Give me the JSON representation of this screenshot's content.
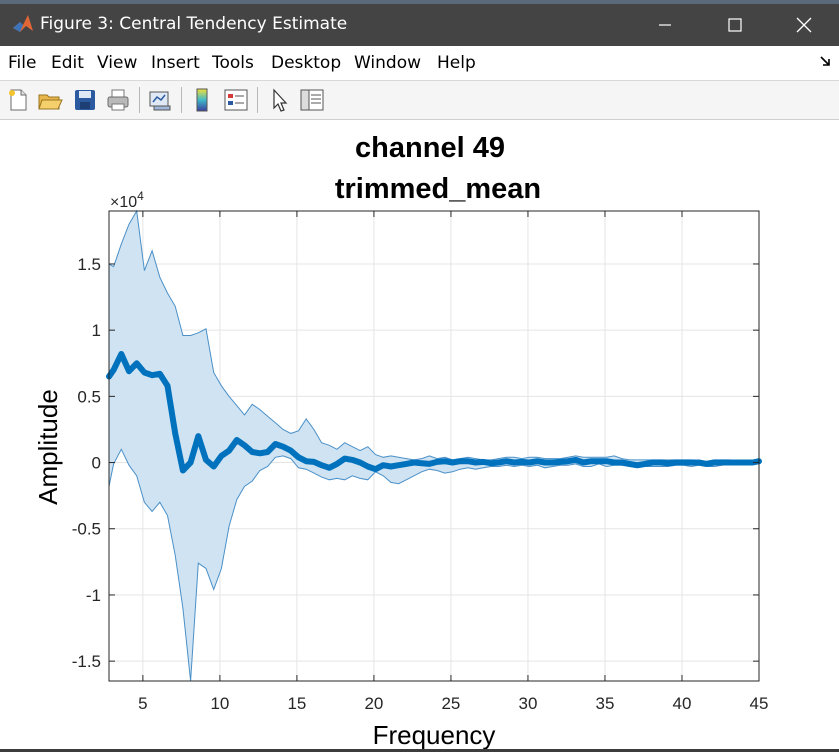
{
  "window": {
    "title": "Figure 3: Central Tendency Estimate",
    "app_icon": "matlab-icon",
    "controls": [
      "minimize-icon",
      "maximize-icon",
      "close-icon"
    ]
  },
  "menu": {
    "items": [
      "File",
      "Edit",
      "View",
      "Insert",
      "Tools",
      "Desktop",
      "Window",
      "Help"
    ],
    "dock_icon": "dock-arrow-icon"
  },
  "toolbar": {
    "tools": [
      "new-figure-icon",
      "open-file-icon",
      "save-icon",
      "print-icon",
      "link-plot-icon",
      "colorbar-icon",
      "legend-icon",
      "pointer-icon",
      "property-inspector-icon"
    ]
  },
  "chart_data": {
    "type": "line",
    "title": "channel 49",
    "subtitle": "trimmed_mean",
    "xlabel": "Frequency",
    "ylabel": "Amplitude",
    "y_exponent_label": "×10",
    "y_exponent": "4",
    "xlim": [
      2.8,
      45
    ],
    "ylim": [
      -16500,
      19000
    ],
    "xticks": [
      5,
      10,
      15,
      20,
      25,
      30,
      35,
      40,
      45
    ],
    "yticks": [
      -15000,
      -10000,
      -5000,
      0,
      5000,
      10000,
      15000
    ],
    "yticklabels": [
      "-1.5",
      "-1",
      "-0.5",
      "0",
      "0.5",
      "1",
      "1.5"
    ],
    "grid": true,
    "colors": {
      "line": "#0072bd",
      "band_fill": "#cfe3f2",
      "band_edge": "#4a90c8",
      "grid": "#e5e5e5"
    },
    "x": [
      2.8,
      3.1,
      3.6,
      4.1,
      4.6,
      5.1,
      5.6,
      6.1,
      6.6,
      7.1,
      7.6,
      8.1,
      8.6,
      9.1,
      9.6,
      10.1,
      10.6,
      11.1,
      11.6,
      12.1,
      12.6,
      13.1,
      13.6,
      14.1,
      14.6,
      15.1,
      15.6,
      16.1,
      16.6,
      17.1,
      17.6,
      18.1,
      18.6,
      19.1,
      19.6,
      20.1,
      20.6,
      21.1,
      21.6,
      22.1,
      22.6,
      23.1,
      23.6,
      24.1,
      24.6,
      25.1,
      25.6,
      26.1,
      26.6,
      27.1,
      27.6,
      28.1,
      28.6,
      29.1,
      29.6,
      30.1,
      30.6,
      31.1,
      31.6,
      32.1,
      32.6,
      33.1,
      33.6,
      34.1,
      34.6,
      35.1,
      35.6,
      36.1,
      36.6,
      37.1,
      37.6,
      38.1,
      38.6,
      39.1,
      39.6,
      40.1,
      40.6,
      41.1,
      41.6,
      42.1,
      42.6,
      43.1,
      43.6,
      44.1,
      44.6,
      45.0
    ],
    "series": [
      {
        "values": [
          6500,
          7000,
          8200,
          6900,
          7500,
          6800,
          6600,
          6700,
          5800,
          2200,
          -600,
          0,
          2000,
          200,
          -300,
          500,
          900,
          1700,
          1300,
          800,
          700,
          800,
          1400,
          1200,
          900,
          400,
          100,
          50,
          -200,
          -400,
          -100,
          300,
          200,
          0,
          -300,
          -500,
          -200,
          -300,
          -200,
          -100,
          0,
          -50,
          -100,
          50,
          100,
          0,
          100,
          100,
          0,
          50,
          -50,
          0,
          100,
          0,
          50,
          0,
          100,
          0,
          0,
          50,
          100,
          200,
          0,
          100,
          100,
          100,
          0,
          0,
          -100,
          -200,
          -100,
          0,
          0,
          -50,
          0,
          0,
          0,
          0,
          -100,
          0,
          0,
          0,
          0,
          0,
          0,
          100
        ]
      }
    ],
    "band": {
      "upper": [
        15000,
        14800,
        16500,
        18000,
        19000,
        14500,
        16000,
        14000,
        12800,
        11800,
        9600,
        9600,
        9800,
        10100,
        6800,
        5800,
        5000,
        4300,
        3600,
        4400,
        4000,
        3500,
        3000,
        2500,
        2200,
        2400,
        3300,
        2500,
        1500,
        1300,
        1000,
        1500,
        1200,
        900,
        1200,
        600,
        400,
        500,
        400,
        300,
        200,
        300,
        500,
        300,
        400,
        200,
        300,
        400,
        300,
        200,
        200,
        300,
        400,
        400,
        300,
        400,
        400,
        300,
        300,
        300,
        400,
        500,
        400,
        400,
        400,
        400,
        500,
        300,
        200,
        200,
        200,
        200,
        200,
        200,
        200,
        200,
        200,
        100,
        100,
        200,
        200,
        200,
        100,
        100,
        100,
        200
      ],
      "lower": [
        -1800,
        -100,
        1000,
        -200,
        -1000,
        -3000,
        -3700,
        -3000,
        -4000,
        -7000,
        -11000,
        -16500,
        -7600,
        -8000,
        -9600,
        -8000,
        -4800,
        -2800,
        -1800,
        -1400,
        -600,
        -300,
        400,
        500,
        300,
        -400,
        -500,
        -800,
        -1100,
        -1300,
        -1200,
        -1300,
        -1000,
        -1200,
        -1300,
        -700,
        -1000,
        -1500,
        -1600,
        -1300,
        -1000,
        -700,
        -500,
        -600,
        -800,
        -700,
        -500,
        -400,
        -500,
        -400,
        -300,
        -300,
        -200,
        -300,
        -200,
        -300,
        -200,
        -400,
        -300,
        -200,
        -200,
        -100,
        -300,
        -300,
        -100,
        -300,
        -200,
        -200,
        -300,
        -400,
        -300,
        -300,
        -300,
        -300,
        -200,
        -200,
        -300,
        -200,
        -300,
        -300,
        -200,
        -100,
        -100,
        -100,
        -100,
        0
      ]
    }
  }
}
